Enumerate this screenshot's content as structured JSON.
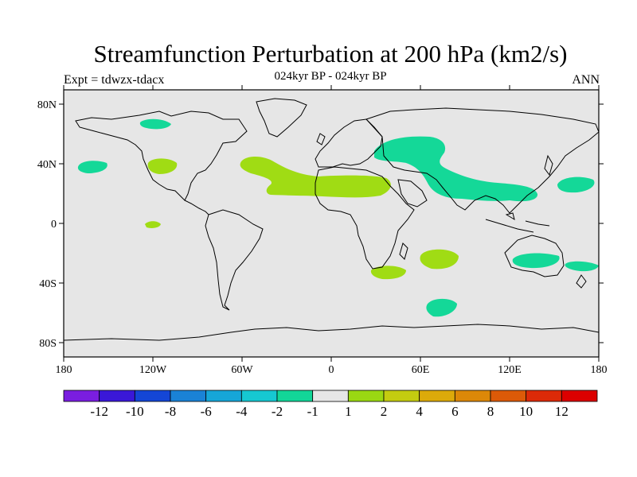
{
  "title": "Streamfunction Perturbation at 200 hPa (km2/s)",
  "subtitle": "024kyr BP - 024kyr BP",
  "left_note": "Expt = tdwzx-tdacx",
  "right_note": "ANN",
  "lat_ticks": [
    "80N",
    "40N",
    "0",
    "40S",
    "80S"
  ],
  "lon_ticks": [
    "180",
    "120W",
    "60W",
    "0",
    "60E",
    "120E",
    "180"
  ],
  "colorbar": {
    "labels": [
      "-12",
      "-10",
      "-8",
      "-6",
      "-4",
      "-2",
      "-1",
      "1",
      "2",
      "4",
      "6",
      "8",
      "10",
      "12"
    ],
    "colors": [
      "#7a1ee0",
      "#3a18d8",
      "#1446d6",
      "#1a82d6",
      "#16a6d8",
      "#16c8d2",
      "#12d698",
      "#e6e6e6",
      "#9ad812",
      "#c4cc10",
      "#dcaa0a",
      "#dc8808",
      "#dc5a08",
      "#dc2a08",
      "#dc0000"
    ]
  },
  "colors": {
    "ocean_bg": "#e6e6e6",
    "positive_fill": "#a0dc14",
    "negative_fill": "#14d898",
    "coast": "#000000"
  }
}
